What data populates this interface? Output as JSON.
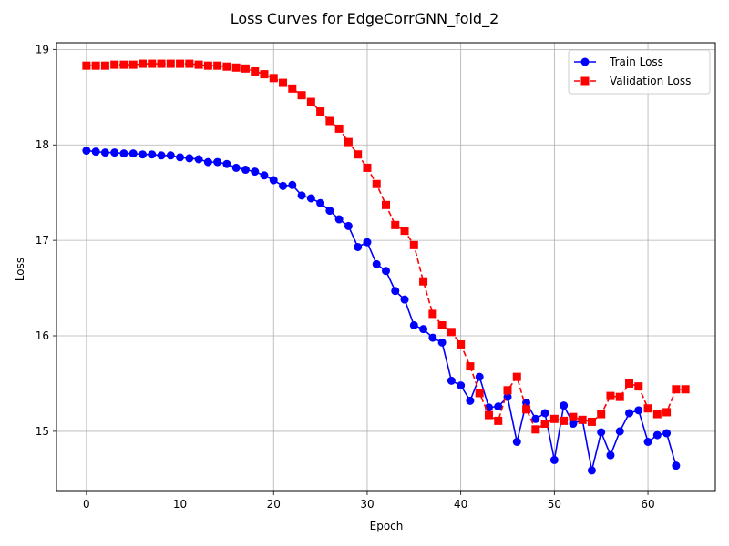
{
  "chart_data": {
    "type": "line",
    "title": "Loss Curves for EdgeCorrGNN_fold_2",
    "xlabel": "Epoch",
    "ylabel": "Loss",
    "xlim": [
      -3.2,
      67.2
    ],
    "ylim": [
      14.37,
      19.07
    ],
    "xticks": [
      0,
      10,
      20,
      30,
      40,
      50,
      60
    ],
    "yticks": [
      15,
      16,
      17,
      18,
      19
    ],
    "grid": true,
    "legend_position": "top-right",
    "series": [
      {
        "name": "Train Loss",
        "color": "#0000ff",
        "marker": "circle",
        "linestyle": "solid",
        "x": [
          0,
          1,
          2,
          3,
          4,
          5,
          6,
          7,
          8,
          9,
          10,
          11,
          12,
          13,
          14,
          15,
          16,
          17,
          18,
          19,
          20,
          21,
          22,
          23,
          24,
          25,
          26,
          27,
          28,
          29,
          30,
          31,
          32,
          33,
          34,
          35,
          36,
          37,
          38,
          39,
          40,
          41,
          42,
          43,
          44,
          45,
          46,
          47,
          48,
          49,
          50,
          51,
          52,
          53,
          54,
          55,
          56,
          57,
          58,
          59,
          60,
          61,
          62,
          63
        ],
        "values": [
          17.94,
          17.93,
          17.92,
          17.92,
          17.91,
          17.91,
          17.9,
          17.9,
          17.89,
          17.89,
          17.87,
          17.86,
          17.85,
          17.82,
          17.82,
          17.8,
          17.76,
          17.74,
          17.72,
          17.68,
          17.63,
          17.57,
          17.58,
          17.47,
          17.44,
          17.39,
          17.31,
          17.22,
          17.15,
          16.93,
          16.98,
          16.75,
          16.68,
          16.47,
          16.38,
          16.11,
          16.07,
          15.98,
          15.93,
          15.53,
          15.48,
          15.32,
          15.57,
          15.25,
          15.26,
          15.36,
          14.89,
          15.3,
          15.13,
          15.19,
          14.7,
          15.27,
          15.08,
          15.12,
          14.59,
          14.99,
          14.75,
          15.0,
          15.19,
          15.22,
          14.89,
          14.96,
          14.98,
          14.64
        ]
      },
      {
        "name": "Validation Loss",
        "color": "#ff0000",
        "marker": "square",
        "linestyle": "dashed",
        "x": [
          0,
          1,
          2,
          3,
          4,
          5,
          6,
          7,
          8,
          9,
          10,
          11,
          12,
          13,
          14,
          15,
          16,
          17,
          18,
          19,
          20,
          21,
          22,
          23,
          24,
          25,
          26,
          27,
          28,
          29,
          30,
          31,
          32,
          33,
          34,
          35,
          36,
          37,
          38,
          39,
          40,
          41,
          42,
          43,
          44,
          45,
          46,
          47,
          48,
          49,
          50,
          51,
          52,
          53,
          54,
          55,
          56,
          57,
          58,
          59,
          60,
          61,
          62,
          63,
          64
        ],
        "values": [
          18.83,
          18.83,
          18.83,
          18.84,
          18.84,
          18.84,
          18.85,
          18.85,
          18.85,
          18.85,
          18.85,
          18.85,
          18.84,
          18.83,
          18.83,
          18.82,
          18.81,
          18.8,
          18.77,
          18.74,
          18.7,
          18.65,
          18.59,
          18.52,
          18.45,
          18.35,
          18.25,
          18.17,
          18.03,
          17.9,
          17.76,
          17.59,
          17.37,
          17.16,
          17.1,
          16.95,
          16.57,
          16.23,
          16.11,
          16.04,
          15.91,
          15.68,
          15.4,
          15.17,
          15.11,
          15.43,
          15.57,
          15.23,
          15.02,
          15.08,
          15.13,
          15.11,
          15.15,
          15.12,
          15.1,
          15.18,
          15.37,
          15.36,
          15.5,
          15.47,
          15.24,
          15.18,
          15.2,
          15.44,
          15.44
        ]
      }
    ]
  }
}
